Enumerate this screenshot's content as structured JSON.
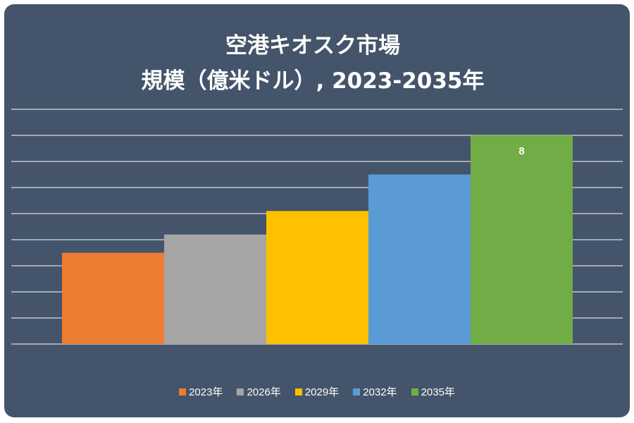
{
  "chart_data": {
    "type": "bar",
    "title_lines": [
      "空港キオスク市場",
      "規模（億米ドル）, 2023-2035年"
    ],
    "categories": [
      "2023年",
      "2026年",
      "2029年",
      "2032年",
      "2035年"
    ],
    "values": [
      3.5,
      4.2,
      5.1,
      6.5,
      8.0
    ],
    "colors": [
      "#ed7d31",
      "#a5a5a5",
      "#ffc000",
      "#5b9bd5",
      "#70ad47"
    ],
    "data_labels": [
      "",
      "",
      "",
      "",
      "8"
    ],
    "ylim": [
      0,
      9
    ],
    "grid": true,
    "legend_position": "bottom"
  }
}
